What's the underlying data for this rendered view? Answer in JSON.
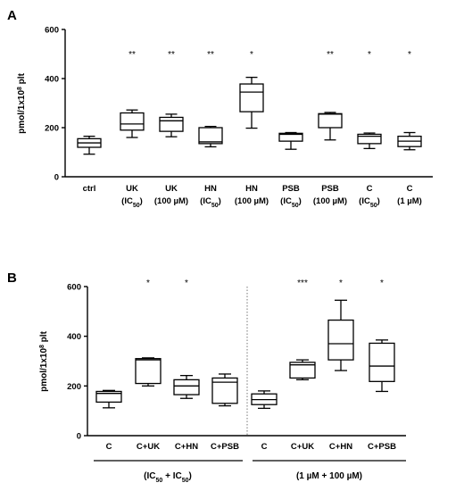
{
  "chart_data": [
    {
      "type": "box",
      "panel": "A",
      "ylabel": "pmol/1x10^8 plt",
      "ylabel_base": "pmol/1x10",
      "ylabel_sup": "8",
      "ylabel_tail": " plt",
      "ylim": [
        0,
        600
      ],
      "yticks": [
        "0",
        "200",
        "400",
        "600"
      ],
      "categories": [
        {
          "line1": "ctrl",
          "line2": "",
          "sub": "",
          "tail": ""
        },
        {
          "line1": "UK",
          "line2": "(IC",
          "sub": "50",
          "tail": ")"
        },
        {
          "line1": "UK",
          "line2": "(100 µM)",
          "sub": "",
          "tail": ""
        },
        {
          "line1": "HN",
          "line2": "(IC",
          "sub": "50",
          "tail": ")"
        },
        {
          "line1": "HN",
          "line2": "(100 µM)",
          "sub": "",
          "tail": ""
        },
        {
          "line1": "PSB",
          "line2": "(IC",
          "sub": "50",
          "tail": ")"
        },
        {
          "line1": "PSB",
          "line2": "(100 µM)",
          "sub": "",
          "tail": ""
        },
        {
          "line1": "C",
          "line2": "(IC",
          "sub": "50",
          "tail": ")"
        },
        {
          "line1": "C",
          "line2": "(1 µM)",
          "sub": "",
          "tail": ""
        }
      ],
      "boxes": [
        {
          "min": 92,
          "q1": 120,
          "median": 138,
          "q3": 155,
          "max": 165
        },
        {
          "min": 160,
          "q1": 190,
          "median": 215,
          "q3": 260,
          "max": 272
        },
        {
          "min": 163,
          "q1": 185,
          "median": 228,
          "q3": 242,
          "max": 255
        },
        {
          "min": 122,
          "q1": 135,
          "median": 142,
          "q3": 200,
          "max": 205
        },
        {
          "min": 198,
          "q1": 265,
          "median": 345,
          "q3": 378,
          "max": 405
        },
        {
          "min": 112,
          "q1": 145,
          "median": 173,
          "q3": 177,
          "max": 180
        },
        {
          "min": 150,
          "q1": 200,
          "median": 255,
          "q3": 257,
          "max": 262
        },
        {
          "min": 115,
          "q1": 135,
          "median": 165,
          "q3": 173,
          "max": 178
        },
        {
          "min": 110,
          "q1": 123,
          "median": 145,
          "q3": 165,
          "max": 180
        }
      ],
      "significance": [
        "",
        "**",
        "**",
        "**",
        "*",
        "",
        "**",
        "*",
        "*"
      ]
    },
    {
      "type": "box",
      "panel": "B",
      "ylabel": "pmol/1x10^8 plt",
      "ylabel_base": "pmol/1x10",
      "ylabel_sup": "8",
      "ylabel_tail": " plt",
      "ylim": [
        0,
        600
      ],
      "yticks": [
        "0",
        "200",
        "400",
        "600"
      ],
      "categories": [
        "C",
        "C+UK",
        "C+HN",
        "C+PSB",
        "C",
        "C+UK",
        "C+HN",
        "C+PSB"
      ],
      "boxes": [
        {
          "min": 112,
          "q1": 135,
          "median": 170,
          "q3": 178,
          "max": 182
        },
        {
          "min": 200,
          "q1": 210,
          "median": 305,
          "q3": 310,
          "max": 313
        },
        {
          "min": 150,
          "q1": 165,
          "median": 200,
          "q3": 225,
          "max": 242
        },
        {
          "min": 120,
          "q1": 130,
          "median": 215,
          "q3": 232,
          "max": 248
        },
        {
          "min": 110,
          "q1": 125,
          "median": 145,
          "q3": 168,
          "max": 180
        },
        {
          "min": 225,
          "q1": 232,
          "median": 285,
          "q3": 295,
          "max": 305
        },
        {
          "min": 262,
          "q1": 305,
          "median": 370,
          "q3": 465,
          "max": 545
        },
        {
          "min": 178,
          "q1": 218,
          "median": 280,
          "q3": 372,
          "max": 385
        }
      ],
      "significance": [
        "",
        "*",
        "*",
        "",
        "",
        "***",
        "*",
        "*"
      ],
      "groups": [
        {
          "label_left": "(IC",
          "sub1": "50",
          "mid": " + IC",
          "sub2": "50",
          "label_right": ")"
        },
        {
          "label_left": "(1 µM + 100 µM)",
          "sub1": "",
          "mid": "",
          "sub2": "",
          "label_right": ""
        }
      ]
    }
  ]
}
